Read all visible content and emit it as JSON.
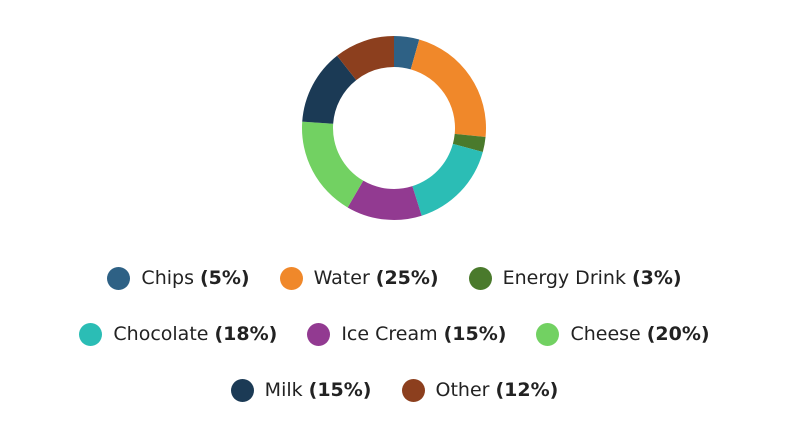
{
  "chart_data": {
    "type": "pie",
    "categories": [
      "Chips",
      "Water",
      "Energy Drink",
      "Chocolate",
      "Ice Cream",
      "Cheese",
      "Milk",
      "Other"
    ],
    "values": [
      5,
      25,
      3,
      18,
      15,
      20,
      15,
      12
    ],
    "value_labels": [
      "(5%)",
      "(25%)",
      "(3%)",
      "(18%)",
      "(15%)",
      "(20%)",
      "(15%)",
      "(12%)"
    ],
    "colors": [
      "#2e6185",
      "#f0882a",
      "#4a7a2c",
      "#2bbdb5",
      "#923a91",
      "#72d162",
      "#1b3a55",
      "#8c3f1e"
    ]
  }
}
